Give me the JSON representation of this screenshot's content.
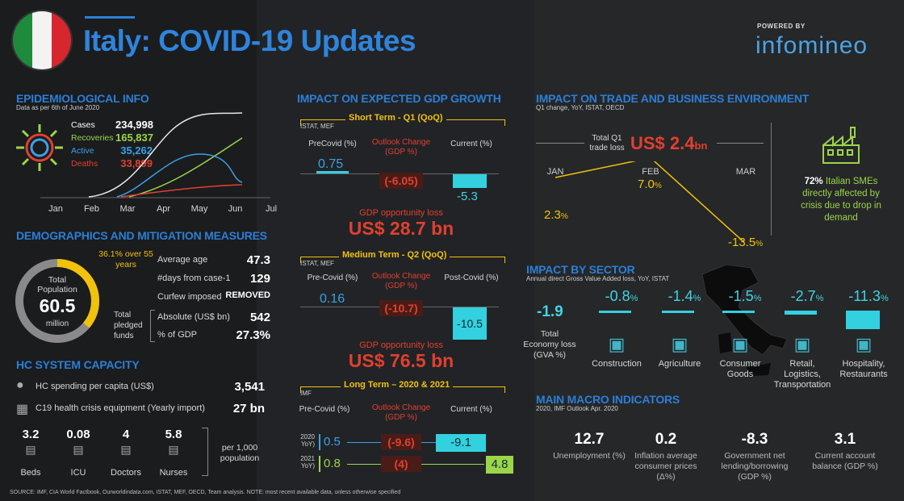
{
  "header": {
    "title": "Italy: COVID-19 Updates",
    "powered_by": "POWERED BY",
    "brand": "infomineo"
  },
  "epidemiological": {
    "title": "EPIDEMIOLOGICAL INFO",
    "subtitle": "Data as per 6th of June 2020",
    "stats": [
      {
        "label": "Cases",
        "value": "234,998",
        "color": "#ffffff"
      },
      {
        "label": "Recoveries",
        "value": "165,837",
        "color": "#9bd54a"
      },
      {
        "label": "Active",
        "value": "35,262",
        "color": "#3aa0e8"
      },
      {
        "label": "Deaths",
        "value": "33,899",
        "color": "#e0402f"
      }
    ],
    "months": [
      "Jan",
      "Feb",
      "Mar",
      "Apr",
      "May",
      "Jun",
      "Jul"
    ]
  },
  "demographics": {
    "title": "DEMOGRAPHICS AND MITIGATION MEASURES",
    "over55": "36.1% over 55 years",
    "over55_pct": 36.1,
    "total_population_label": "Total Population",
    "total_population_value": "60.5",
    "total_population_unit": "million",
    "rows": [
      {
        "label": "Average age",
        "value": "47.3"
      },
      {
        "label": "#days from case-1",
        "value": "129"
      },
      {
        "label": "Curfew imposed",
        "value": "REMOVED"
      }
    ],
    "pledged_label": "Total pledged funds",
    "pledged": [
      {
        "label": "Absolute (US$ bn)",
        "value": "542"
      },
      {
        "label": "% of GDP",
        "value": "27.3%"
      }
    ]
  },
  "hc": {
    "title": "HC SYSTEM CAPACITY",
    "rows": [
      {
        "label": "HC spending per capita (US$)",
        "value": "3,541"
      },
      {
        "label": "C19 health crisis equipment (Yearly import)",
        "value": "27 bn"
      }
    ],
    "capacity": [
      {
        "value": "3.2",
        "label": "Beds"
      },
      {
        "value": "0.08",
        "label": "ICU"
      },
      {
        "value": "4",
        "label": "Doctors"
      },
      {
        "value": "5.8",
        "label": "Nurses"
      }
    ],
    "per_label": "per 1,000 population"
  },
  "gdp": {
    "title": "IMPACT ON EXPECTED GDP GROWTH",
    "short": {
      "header": "Short Term - Q1 (QoQ)",
      "source": "ISTAT, MEF",
      "col1": "PreCovid (%)",
      "col2": "Outlook Change (GDP %)",
      "col3": "Current (%)",
      "pre": "0.75",
      "change": "(-6.05)",
      "current": "-5.3",
      "loss_label": "GDP opportunity loss",
      "loss_value": "US$ 28.7 bn"
    },
    "medium": {
      "header": "Medium Term - Q2 (QoQ)",
      "source": "ISTAT, MEF",
      "col1": "Pre-Covid (%)",
      "col2": "Outlook Change (GDP %)",
      "col3": "Post-Covid (%)",
      "pre": "0.16",
      "change": "(-10.7)",
      "current": "-10.5",
      "loss_label": "GDP opportunity loss",
      "loss_value": "US$ 76.5 bn"
    },
    "long": {
      "header": "Long Term – 2020 & 2021",
      "source": "IMF",
      "col1": "Pre-Covid (%)",
      "col2": "Outlook Change (GDP %)",
      "col3": "Current (%)",
      "rows": [
        {
          "year": "2020 YoY)",
          "pre": "0.5",
          "change": "(-9.6)",
          "current": "-9.1"
        },
        {
          "year": "2021 YoY)",
          "pre": "0.8",
          "change": "(4)",
          "current": "4.8"
        }
      ]
    }
  },
  "trade": {
    "title": "IMPACT ON TRADE AND BUSINESS ENVIRONMENT",
    "subtitle": "Q1 change, YoY, ISTAT, OECD",
    "loss_label": "Total Q1 trade loss",
    "loss_value": "US$ 2.4",
    "loss_unit": "bn",
    "months": [
      "JAN",
      "FEB",
      "MAR"
    ],
    "values": [
      "2.3",
      "7.0",
      "-13.5"
    ],
    "pct": "%",
    "chart_values": [
      2.3,
      7.0,
      -13.5
    ],
    "sme_pct": "72%",
    "sme_text": "Italian SMEs directly affected by crisis due to drop in demand"
  },
  "sector": {
    "title": "IMPACT BY SECTOR",
    "subtitle": "Annual direct Gross Value Added loss, YoY, ISTAT",
    "total_value": "-1.9",
    "total_label": "Total Economy loss (GVA %)",
    "items": [
      {
        "value": "-0.8",
        "label": "Construction",
        "loss": 0.8
      },
      {
        "value": "-1.4",
        "label": "Agriculture",
        "loss": 1.4
      },
      {
        "value": "-1.5",
        "label": "Consumer Goods",
        "loss": 1.5
      },
      {
        "value": "-2.7",
        "label": "Retail, Logistics, Transportation",
        "loss": 2.7
      },
      {
        "value": "-11.3",
        "label": "Hospitality, Restaurants",
        "loss": 11.3
      }
    ],
    "pct": "%"
  },
  "macro": {
    "title": "MAIN MACRO INDICATORS",
    "subtitle": "2020, IMF Outlook Apr. 2020",
    "items": [
      {
        "value": "12.7",
        "label": "Unemployment (%)"
      },
      {
        "value": "0.2",
        "label": "Inflation average consumer prices (Δ%)"
      },
      {
        "value": "-8.3",
        "label": "Government net lending/borrowing (GDP %)"
      },
      {
        "value": "3.1",
        "label": "Current account balance (GDP %)"
      }
    ]
  },
  "footer": {
    "source": "SOURCE:  IMF, CIA World Factbook, Ourworldindata.com, ISTAT, MEF, OECD, Team analysis. NOTE: most recent available data, unless otherwise specified"
  },
  "colors": {
    "accent": "#2b7fd6",
    "red": "#e0402f",
    "green": "#9bd54a",
    "cyan": "#33d0e0",
    "yellow": "#f0c20c"
  }
}
